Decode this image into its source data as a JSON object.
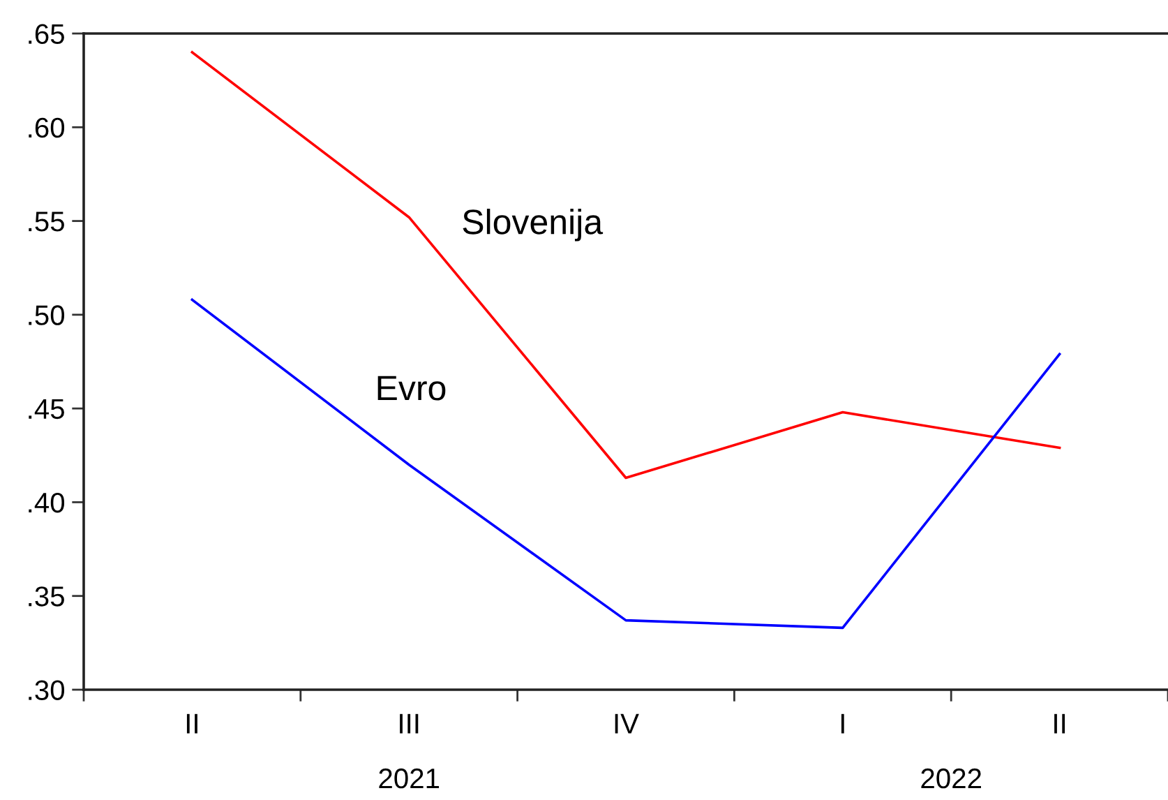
{
  "chart_data": {
    "type": "line",
    "categories": [
      "II",
      "III",
      "IV",
      "I",
      "II"
    ],
    "series": [
      {
        "name": "Slovenija",
        "color": "#ff0000",
        "values": [
          0.64,
          0.552,
          0.413,
          0.448,
          0.429
        ]
      },
      {
        "name": "Evro",
        "color": "#0000ff",
        "values": [
          0.508,
          0.42,
          0.337,
          0.333,
          0.479
        ]
      }
    ],
    "ylim": [
      0.3,
      0.65
    ],
    "yticks": [
      {
        "value": 0.3,
        "label": ".30"
      },
      {
        "value": 0.35,
        "label": ".35"
      },
      {
        "value": 0.4,
        "label": ".40"
      },
      {
        "value": 0.45,
        "label": ".45"
      },
      {
        "value": 0.5,
        "label": ".50"
      },
      {
        "value": 0.55,
        "label": ".55"
      },
      {
        "value": 0.6,
        "label": ".60"
      },
      {
        "value": 0.65,
        "label": ".65"
      }
    ],
    "annotations": [
      "2021",
      "2022"
    ]
  }
}
